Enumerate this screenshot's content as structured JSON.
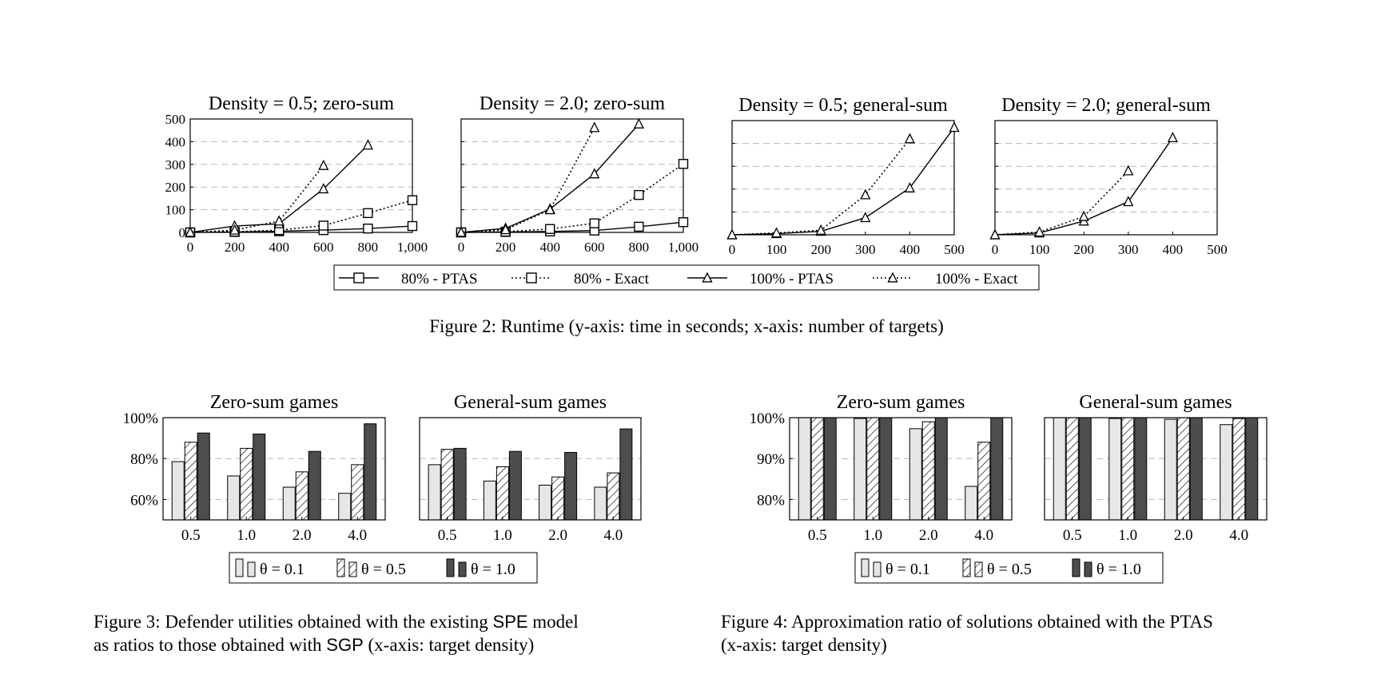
{
  "figure2": {
    "caption": "Figure 2: Runtime (y-axis: time in seconds; x-axis: number of targets)",
    "legend": [
      "80% - PTAS",
      "80% - Exact",
      "100% - PTAS",
      "100% - Exact"
    ]
  },
  "figure3": {
    "caption_line1_pre": "Figure 3: Defender utilities obtained with the existing ",
    "caption_line1_model": "SPE",
    "caption_line1_post": " model",
    "caption_line2_pre": "as ratios to those obtained with ",
    "caption_line2_model": "SGP",
    "caption_line2_post": " (x-axis: target density)",
    "legend": [
      "θ = 0.1",
      "θ = 0.5",
      "θ = 1.0"
    ]
  },
  "figure4": {
    "caption_line1": "Figure 4: Approximation ratio of solutions obtained with the PTAS",
    "caption_line2": "(x-axis: target density)",
    "legend": [
      "θ = 0.1",
      "θ = 0.5",
      "θ = 1.0"
    ]
  },
  "chart_data": [
    {
      "type": "line",
      "title": "Density = 0.5; zero-sum",
      "xlabel": "number of targets",
      "ylabel": "time in seconds",
      "xlim": [
        0,
        1000
      ],
      "ylim": [
        0,
        500
      ],
      "xticks": [
        "0",
        "200",
        "400",
        "600",
        "800",
        "1,000"
      ],
      "yticks": [
        "0",
        "100",
        "200",
        "300",
        "400",
        "500"
      ],
      "grid": true,
      "series": [
        {
          "name": "80% - PTAS",
          "x": [
            0,
            200,
            400,
            600,
            800,
            1000
          ],
          "y": [
            0,
            2,
            5,
            10,
            17,
            28
          ]
        },
        {
          "name": "80% - Exact",
          "x": [
            0,
            200,
            400,
            600,
            800,
            1000
          ],
          "y": [
            0,
            3,
            10,
            30,
            85,
            142
          ]
        },
        {
          "name": "100% - PTAS",
          "x": [
            0,
            200,
            400,
            600,
            800
          ],
          "y": [
            0,
            28,
            38,
            192,
            385
          ]
        },
        {
          "name": "100% - Exact",
          "x": [
            0,
            200,
            400,
            600
          ],
          "y": [
            0,
            10,
            50,
            295
          ]
        }
      ]
    },
    {
      "type": "line",
      "title": "Density = 2.0; zero-sum",
      "xlabel": "number of targets",
      "ylabel": "time in seconds",
      "xlim": [
        0,
        1000
      ],
      "ylim": [
        0,
        500
      ],
      "xticks": [
        "0",
        "200",
        "400",
        "600",
        "800",
        "1,000"
      ],
      "yticks": [],
      "grid": true,
      "series": [
        {
          "name": "80% - PTAS",
          "x": [
            0,
            200,
            400,
            600,
            800,
            1000
          ],
          "y": [
            0,
            2,
            4,
            8,
            25,
            45
          ]
        },
        {
          "name": "80% - Exact",
          "x": [
            0,
            200,
            400,
            600,
            800,
            1000
          ],
          "y": [
            0,
            3,
            15,
            40,
            165,
            302
          ]
        },
        {
          "name": "100% - PTAS",
          "x": [
            0,
            200,
            400,
            600,
            800
          ],
          "y": [
            0,
            18,
            103,
            258,
            478
          ]
        },
        {
          "name": "100% - Exact",
          "x": [
            0,
            200,
            400,
            600
          ],
          "y": [
            0,
            12,
            100,
            462
          ]
        }
      ]
    },
    {
      "type": "line",
      "title": "Density = 0.5; general-sum",
      "xlabel": "number of targets",
      "ylabel": "time in seconds",
      "xlim": [
        0,
        500
      ],
      "ylim": [
        0,
        500
      ],
      "xticks": [
        "0",
        "100",
        "200",
        "300",
        "400",
        "500"
      ],
      "yticks": [],
      "grid": true,
      "series": [
        {
          "name": "100% - PTAS",
          "x": [
            0,
            100,
            200,
            300,
            400,
            500
          ],
          "y": [
            0,
            5,
            15,
            75,
            205,
            470
          ]
        },
        {
          "name": "100% - Exact",
          "x": [
            0,
            100,
            200,
            300,
            400
          ],
          "y": [
            0,
            8,
            20,
            175,
            420
          ]
        }
      ]
    },
    {
      "type": "line",
      "title": "Density = 2.0; general-sum",
      "xlabel": "number of targets",
      "ylabel": "time in seconds",
      "xlim": [
        0,
        500
      ],
      "ylim": [
        0,
        500
      ],
      "xticks": [
        "0",
        "100",
        "200",
        "300",
        "400",
        "500"
      ],
      "yticks": [],
      "grid": true,
      "series": [
        {
          "name": "100% - PTAS",
          "x": [
            0,
            100,
            200,
            300,
            400
          ],
          "y": [
            0,
            8,
            60,
            145,
            425
          ]
        },
        {
          "name": "100% - Exact",
          "x": [
            0,
            100,
            200,
            300
          ],
          "y": [
            0,
            12,
            80,
            280
          ]
        }
      ]
    },
    {
      "type": "bar",
      "title": "Zero-sum games",
      "xlabel": "target density",
      "categories": [
        "0.5",
        "1.0",
        "2.0",
        "4.0"
      ],
      "yticks": [
        "60%",
        "80%",
        "100%"
      ],
      "ylim": [
        50,
        100
      ],
      "grid": true,
      "series": [
        {
          "name": "θ = 0.1",
          "values": [
            78.5,
            71.5,
            66,
            63
          ]
        },
        {
          "name": "θ = 0.5",
          "values": [
            88,
            85,
            73.5,
            77
          ]
        },
        {
          "name": "θ = 1.0",
          "values": [
            92.5,
            92,
            83.5,
            97
          ]
        }
      ]
    },
    {
      "type": "bar",
      "title": "General-sum games",
      "xlabel": "target density",
      "categories": [
        "0.5",
        "1.0",
        "2.0",
        "4.0"
      ],
      "yticks": [],
      "ylim": [
        50,
        100
      ],
      "grid": true,
      "series": [
        {
          "name": "θ = 0.1",
          "values": [
            77,
            69,
            67,
            66
          ]
        },
        {
          "name": "θ = 0.5",
          "values": [
            84.5,
            76,
            71,
            73
          ]
        },
        {
          "name": "θ = 1.0",
          "values": [
            85,
            83.5,
            83,
            94.5
          ]
        }
      ]
    },
    {
      "type": "bar",
      "title": "Zero-sum games",
      "xlabel": "target density",
      "categories": [
        "0.5",
        "1.0",
        "2.0",
        "4.0"
      ],
      "yticks": [
        "80%",
        "90%",
        "100%"
      ],
      "ylim": [
        75,
        100
      ],
      "grid": true,
      "series": [
        {
          "name": "θ = 0.1",
          "values": [
            100,
            99.8,
            97.3,
            83.2
          ]
        },
        {
          "name": "θ = 0.5",
          "values": [
            100,
            100,
            99,
            94
          ]
        },
        {
          "name": "θ = 1.0",
          "values": [
            100,
            100,
            100,
            100
          ]
        }
      ]
    },
    {
      "type": "bar",
      "title": "General-sum games",
      "xlabel": "target density",
      "categories": [
        "0.5",
        "1.0",
        "2.0",
        "4.0"
      ],
      "yticks": [],
      "ylim": [
        75,
        100
      ],
      "grid": true,
      "series": [
        {
          "name": "θ = 0.1",
          "values": [
            100,
            99.8,
            99.6,
            98.3
          ]
        },
        {
          "name": "θ = 0.5",
          "values": [
            100,
            100,
            100,
            99.8
          ]
        },
        {
          "name": "θ = 1.0",
          "values": [
            100,
            100,
            100,
            100
          ]
        }
      ]
    }
  ]
}
